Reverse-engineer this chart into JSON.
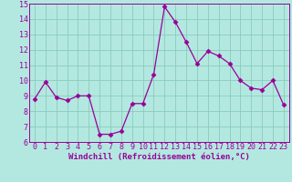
{
  "x": [
    0,
    1,
    2,
    3,
    4,
    5,
    6,
    7,
    8,
    9,
    10,
    11,
    12,
    13,
    14,
    15,
    16,
    17,
    18,
    19,
    20,
    21,
    22,
    23
  ],
  "y": [
    8.8,
    9.9,
    8.9,
    8.7,
    9.0,
    9.0,
    6.5,
    6.5,
    6.7,
    8.5,
    8.5,
    10.4,
    14.8,
    13.8,
    12.5,
    11.1,
    11.9,
    11.6,
    11.1,
    10.0,
    9.5,
    9.4,
    10.0,
    8.4
  ],
  "line_color": "#990099",
  "marker": "D",
  "marker_size": 2.5,
  "bg_color": "#b3e8e0",
  "grid_color": "#88ccbb",
  "ylim": [
    6,
    15
  ],
  "xlim": [
    -0.5,
    23.5
  ],
  "yticks": [
    6,
    7,
    8,
    9,
    10,
    11,
    12,
    13,
    14,
    15
  ],
  "xticks": [
    0,
    1,
    2,
    3,
    4,
    5,
    6,
    7,
    8,
    9,
    10,
    11,
    12,
    13,
    14,
    15,
    16,
    17,
    18,
    19,
    20,
    21,
    22,
    23
  ],
  "xlabel": "Windchill (Refroidissement éolien,°C)",
  "axis_color": "#990099",
  "tick_label_color": "#990099",
  "xlabel_color": "#990099",
  "label_fontsize": 6.5,
  "tick_fontsize": 6.0,
  "linewidth": 0.9
}
